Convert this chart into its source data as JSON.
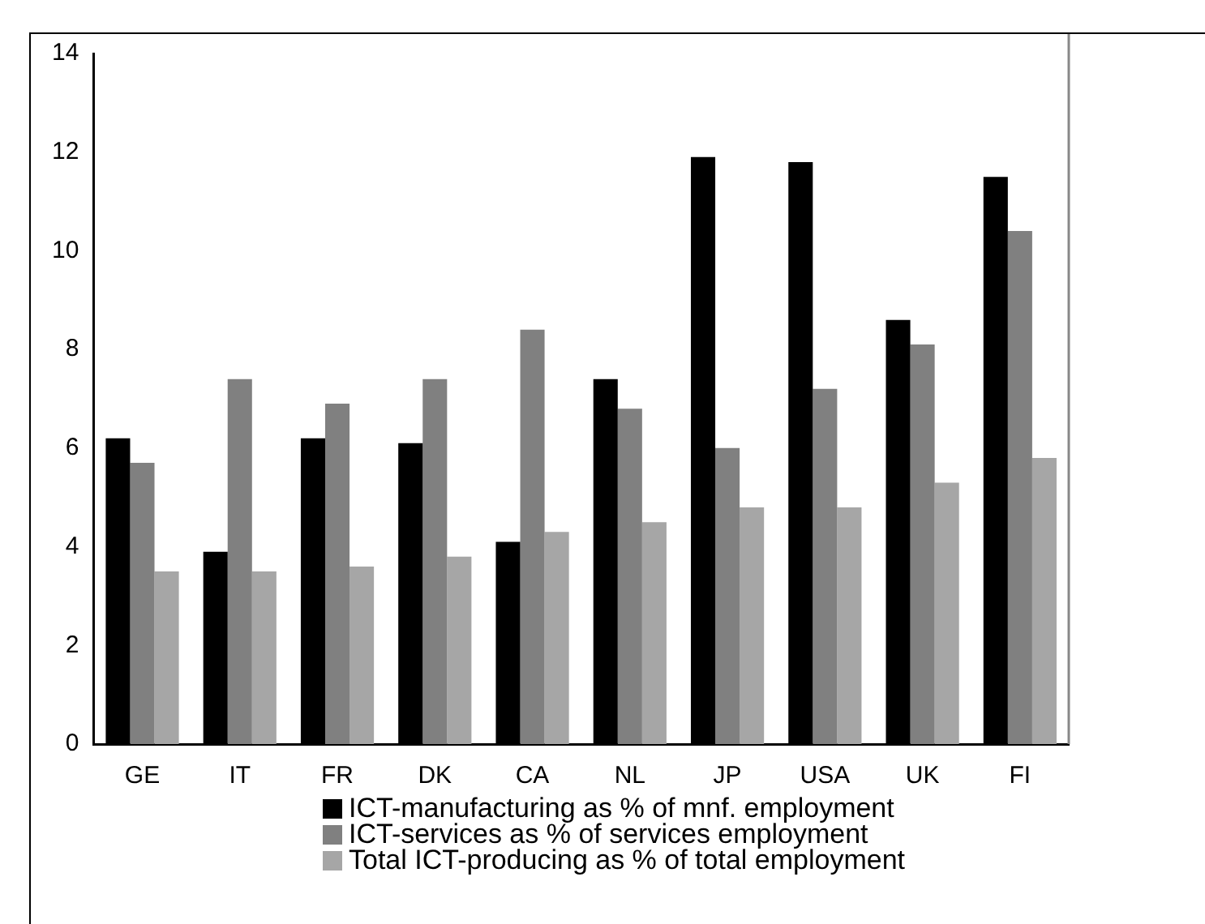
{
  "chart_data": {
    "type": "bar",
    "categories": [
      "GE",
      "IT",
      "FR",
      "DK",
      "CA",
      "NL",
      "JP",
      "USA",
      "UK",
      "FI"
    ],
    "series": [
      {
        "name": "ICT-manufacturing as % of mnf. employment",
        "color": "#000000",
        "values": [
          6.2,
          3.9,
          6.2,
          6.1,
          4.1,
          7.4,
          11.9,
          11.8,
          8.6,
          11.5
        ]
      },
      {
        "name": "ICT-services as % of services employment",
        "color": "#808080",
        "values": [
          5.7,
          7.4,
          6.9,
          7.4,
          8.4,
          6.8,
          6.0,
          7.2,
          8.1,
          10.4
        ]
      },
      {
        "name": "Total ICT-producing as % of total employment",
        "color": "#a6a6a6",
        "values": [
          3.5,
          3.5,
          3.6,
          3.8,
          4.3,
          4.5,
          4.8,
          4.8,
          5.3,
          5.8
        ]
      }
    ],
    "ylim": [
      0,
      14
    ],
    "yticks": [
      0,
      2,
      4,
      6,
      8,
      10,
      12,
      14
    ],
    "grid": false,
    "legend": "bottom"
  }
}
